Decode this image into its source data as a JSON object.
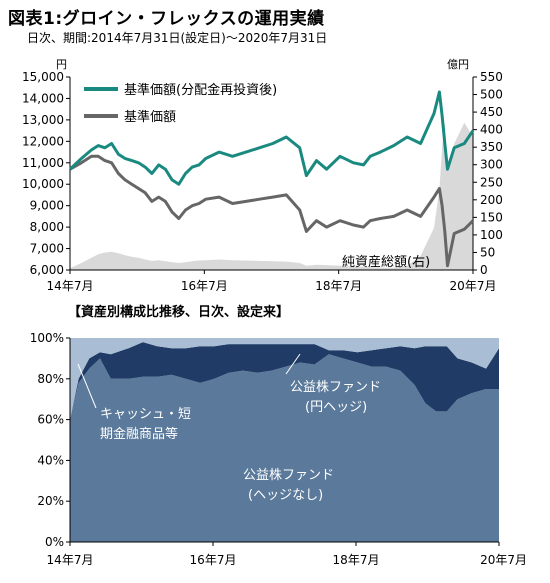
{
  "title": "図表1:グロイン・フレックスの運用実績",
  "subtitle": "日次、期間:2014年7月31日(設定日)〜2020年7月31日",
  "chart_data": [
    {
      "type": "line",
      "left_unit": "円",
      "right_unit": "億円",
      "ylim_left": [
        6000,
        15000
      ],
      "ylim_right": [
        0,
        550
      ],
      "left_ticks": [
        "15,000",
        "14,000",
        "13,000",
        "12,000",
        "11,000",
        "10,000",
        "9,000",
        "8,000",
        "7,000",
        "6,000"
      ],
      "right_ticks": [
        "550",
        "500",
        "450",
        "400",
        "350",
        "300",
        "250",
        "200",
        "150",
        "100",
        "50",
        "0"
      ],
      "x_ticks": [
        "14年7月",
        "16年7月",
        "18年7月",
        "20年7月"
      ],
      "legend_placement": "top-left",
      "annotation": "純資産総額(右)",
      "x": [
        2014.58,
        2014.75,
        2014.9,
        2015.0,
        2015.1,
        2015.2,
        2015.3,
        2015.4,
        2015.5,
        2015.6,
        2015.7,
        2015.8,
        2015.9,
        2016.0,
        2016.1,
        2016.2,
        2016.3,
        2016.4,
        2016.5,
        2016.6,
        2016.8,
        2017.0,
        2017.2,
        2017.4,
        2017.6,
        2017.8,
        2018.0,
        2018.1,
        2018.25,
        2018.4,
        2018.6,
        2018.8,
        2018.95,
        2019.05,
        2019.2,
        2019.4,
        2019.6,
        2019.8,
        2020.0,
        2020.08,
        2020.12,
        2020.16,
        2020.2,
        2020.3,
        2020.45,
        2020.58
      ],
      "series": [
        {
          "name": "基準価額(分配金再投資後)",
          "color": "#1a8a80",
          "values": [
            10700,
            11200,
            11600,
            11800,
            11700,
            11900,
            11400,
            11200,
            11100,
            11000,
            10800,
            10500,
            10900,
            10700,
            10200,
            10000,
            10500,
            10800,
            10900,
            11200,
            11500,
            11300,
            11500,
            11700,
            11900,
            12200,
            11700,
            10400,
            11100,
            10700,
            11300,
            11000,
            10900,
            11300,
            11500,
            11800,
            12200,
            11900,
            13300,
            14300,
            13200,
            11900,
            10700,
            11700,
            11900,
            12500
          ]
        },
        {
          "name": "基準価額",
          "color": "#666666",
          "values": [
            10700,
            11000,
            11300,
            11300,
            11100,
            11000,
            10500,
            10200,
            10000,
            9800,
            9600,
            9200,
            9400,
            9200,
            8700,
            8400,
            8800,
            9000,
            9100,
            9300,
            9400,
            9100,
            9200,
            9300,
            9400,
            9500,
            8800,
            7800,
            8300,
            8000,
            8300,
            8100,
            8000,
            8300,
            8400,
            8500,
            8800,
            8500,
            9400,
            9800,
            9000,
            7800,
            6200,
            7700,
            7900,
            8300
          ]
        },
        {
          "name": "純資産総額",
          "color": "#d9d9d9",
          "values": [
            5,
            20,
            35,
            45,
            50,
            52,
            48,
            42,
            38,
            35,
            30,
            26,
            28,
            25,
            22,
            20,
            22,
            25,
            27,
            28,
            30,
            28,
            27,
            26,
            25,
            24,
            20,
            12,
            15,
            14,
            12,
            10,
            9,
            8,
            7,
            6,
            12,
            40,
            120,
            230,
            350,
            420,
            300,
            360,
            420,
            380
          ]
        }
      ]
    },
    {
      "type": "area",
      "title": "【資産別構成比推移、日次、設定来】",
      "ylim": [
        0,
        100
      ],
      "y_ticks": [
        "100%",
        "80%",
        "60%",
        "40%",
        "20%",
        "0%"
      ],
      "x_ticks": [
        "14年7月",
        "16年7月",
        "18年7月",
        "20年7月"
      ],
      "annotations": [
        "キャッシュ・短期金融商品等",
        "公益株ファンド(円ヘッジ)",
        "公益株ファンド(ヘッジなし)"
      ],
      "x": [
        2014.58,
        2014.7,
        2014.85,
        2015.0,
        2015.15,
        2015.4,
        2015.6,
        2015.8,
        2016.0,
        2016.2,
        2016.4,
        2016.6,
        2016.8,
        2017.0,
        2017.2,
        2017.4,
        2017.6,
        2017.8,
        2018.0,
        2018.2,
        2018.4,
        2018.6,
        2018.8,
        2019.0,
        2019.2,
        2019.4,
        2019.55,
        2019.7,
        2019.85,
        2020.0,
        2020.2,
        2020.4,
        2020.58
      ],
      "series": [
        {
          "name": "公益株ファンド(ヘッジなし)",
          "color": "#5b7a9b",
          "values": [
            60,
            78,
            85,
            90,
            80,
            80,
            81,
            81,
            82,
            80,
            78,
            80,
            83,
            84,
            83,
            84,
            86,
            88,
            87,
            92,
            90,
            88,
            86,
            86,
            84,
            77,
            68,
            64,
            64,
            70,
            73,
            75,
            75
          ]
        },
        {
          "name": "公益株ファンド(円ヘッジ)",
          "color": "#1f3b66",
          "values": [
            0,
            2,
            5,
            3,
            12,
            15,
            17,
            15,
            13,
            15,
            18,
            16,
            14,
            13,
            14,
            13,
            11,
            9,
            10,
            2,
            4,
            5,
            8,
            9,
            12,
            18,
            28,
            32,
            32,
            20,
            15,
            10,
            20
          ]
        },
        {
          "name": "キャッシュ・短期金融商品等",
          "color": "#a9bdd4",
          "values": [
            40,
            20,
            10,
            7,
            8,
            5,
            2,
            4,
            5,
            5,
            4,
            4,
            3,
            3,
            3,
            3,
            3,
            3,
            3,
            6,
            6,
            7,
            6,
            5,
            4,
            5,
            4,
            4,
            4,
            10,
            12,
            15,
            5
          ]
        }
      ]
    }
  ]
}
